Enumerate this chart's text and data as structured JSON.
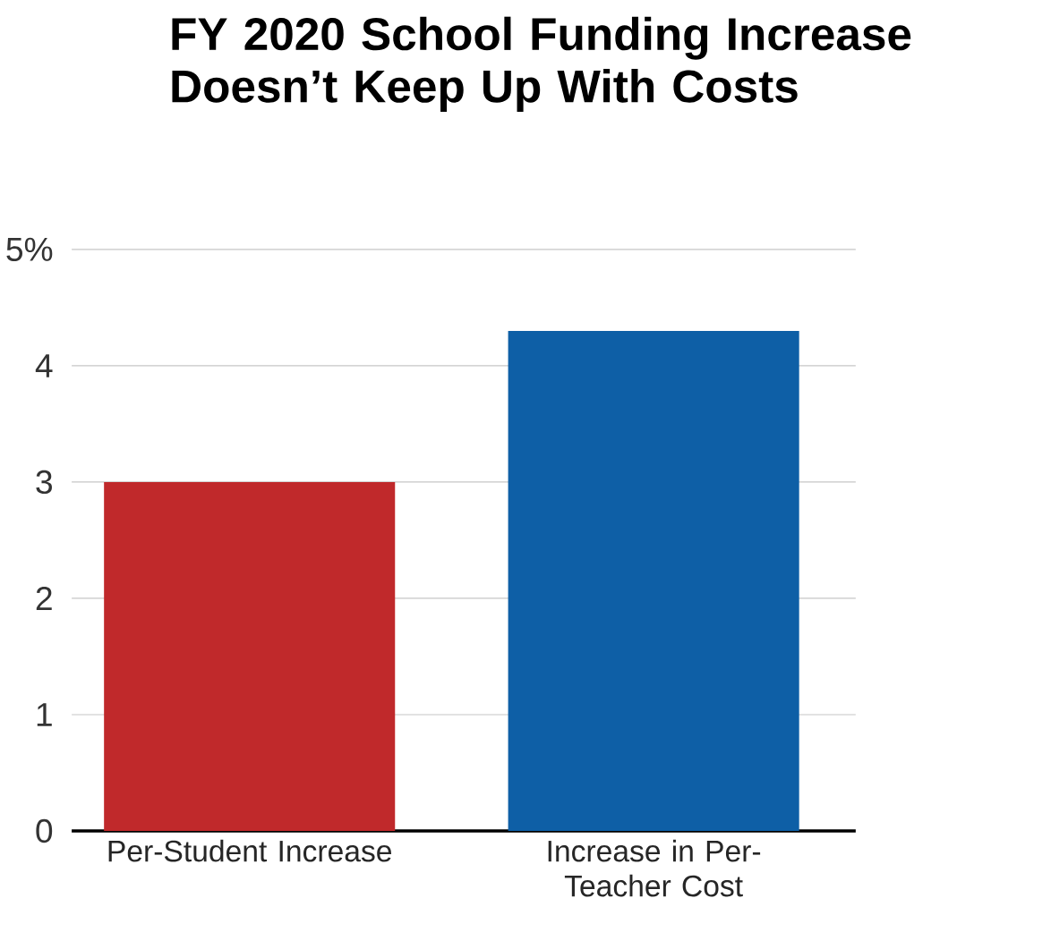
{
  "chart_data": {
    "type": "bar",
    "title": "FY 2020 School Funding Increase Doesn’t Keep Up With Costs",
    "categories": [
      "Per-Student Increase",
      "Increase in Per-Teacher Cost"
    ],
    "values": [
      3.0,
      4.3
    ],
    "colors": [
      "#c0292b",
      "#0e5fa6"
    ],
    "ylim": [
      0,
      5
    ],
    "yticks": [
      0,
      1,
      2,
      3,
      4,
      {
        "value": 5,
        "label": "5%"
      }
    ],
    "grid": "y"
  }
}
